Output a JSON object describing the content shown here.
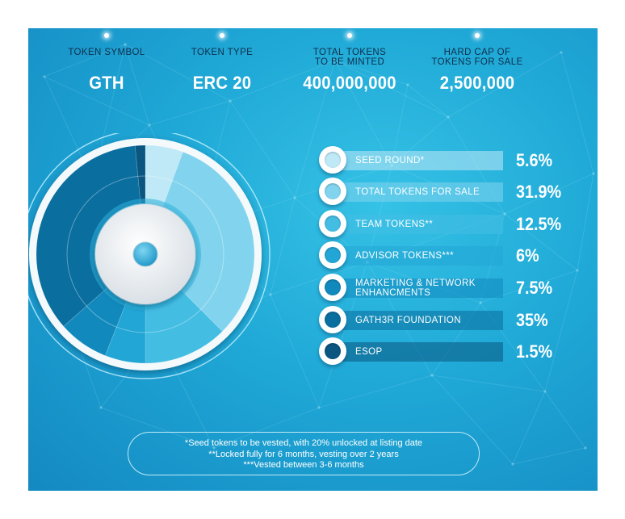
{
  "header": {
    "stats": [
      {
        "label_lines": [
          "TOKEN SYMBOL"
        ],
        "value": "GTH"
      },
      {
        "label_lines": [
          "TOKEN TYPE"
        ],
        "value": "ERC 20"
      },
      {
        "label_lines": [
          "TOTAL TOKENS",
          "TO BE MINTED"
        ],
        "value": "400,000,000"
      },
      {
        "label_lines": [
          "HARD CAP OF",
          "TOKENS FOR SALE"
        ],
        "value": "2,500,000"
      }
    ]
  },
  "chart_data": {
    "type": "pie",
    "series": [
      {
        "label_lines": [
          "SEED ROUND"
        ],
        "suffix": "*",
        "value": 5.6,
        "display": "5.6%",
        "color": "#bfe9f6"
      },
      {
        "label_lines": [
          "TOTAL TOKENS FOR SALE"
        ],
        "suffix": "",
        "value": 31.9,
        "display": "31.9%",
        "color": "#82d4ee"
      },
      {
        "label_lines": [
          "TEAM TOKENS"
        ],
        "suffix": "**",
        "value": 12.5,
        "display": "12.5%",
        "color": "#44bde3"
      },
      {
        "label_lines": [
          "ADVISOR TOKENS"
        ],
        "suffix": "***",
        "value": 6,
        "display": "6%",
        "color": "#22a6d6"
      },
      {
        "label_lines": [
          "MARKETING & NETWORK",
          "ENHANCMENTS"
        ],
        "suffix": "",
        "value": 7.5,
        "display": "7.5%",
        "color": "#1189bd"
      },
      {
        "label_lines": [
          "GATH3R FOUNDATION"
        ],
        "suffix": "",
        "value": 35,
        "display": "35%",
        "color": "#0a6e9f"
      },
      {
        "label_lines": [
          "ESOP"
        ],
        "suffix": "",
        "value": 1.5,
        "display": "1.5%",
        "color": "#0a5680"
      }
    ]
  },
  "footnotes": [
    "*Seed tokens to be vested, with 20% unlocked at listing date",
    "**Locked fully for 6 months, vesting over 2 years",
    "***Vested between 3-6 months"
  ]
}
